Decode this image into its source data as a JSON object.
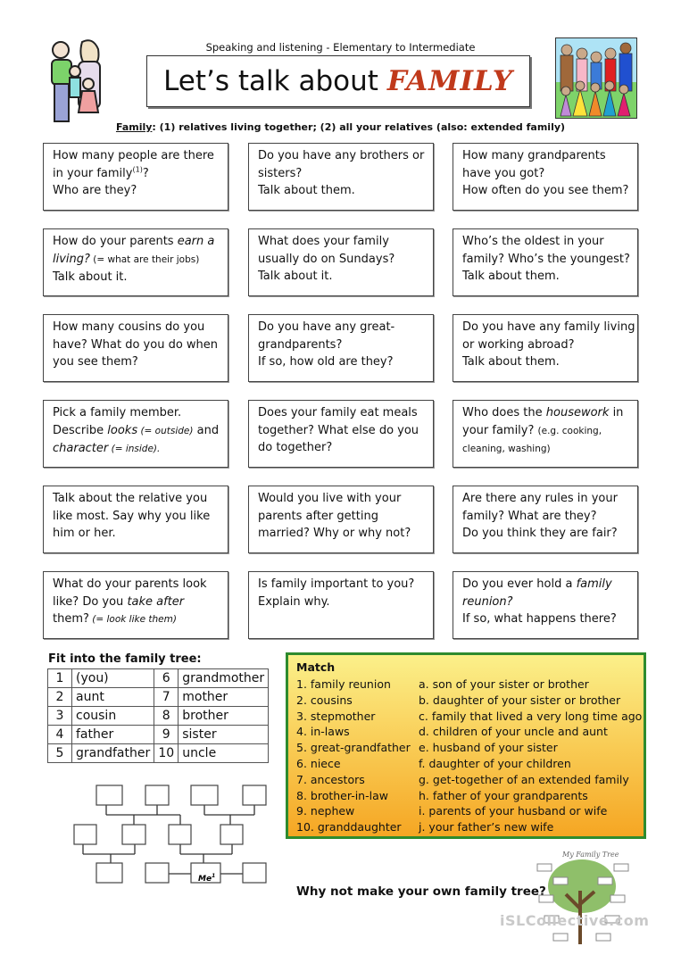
{
  "header": {
    "subtitle": "Speaking and listening - Elementary to Intermediate",
    "title_main": "Let’s talk about",
    "title_accent": "FAMILY",
    "definition_term": "Family",
    "definition_text": ": (1) relatives living together; (2) all your relatives (also: extended family)",
    "accent_color": "#c0391b"
  },
  "cards": [
    [
      [
        {
          "t": "How many people are there"
        }
      ],
      [
        {
          "t": "in your family"
        },
        {
          "t": "(1)",
          "sup": true
        },
        {
          "t": "?"
        }
      ],
      [
        {
          "t": "Who are they?"
        }
      ]
    ],
    [
      [
        {
          "t": "Do you have any brothers or"
        }
      ],
      [
        {
          "t": "sisters?"
        }
      ],
      [
        {
          "t": "Talk about them."
        }
      ]
    ],
    [
      [
        {
          "t": "How many grandparents"
        }
      ],
      [
        {
          "t": "have you got?"
        }
      ],
      [
        {
          "t": "How often do you see them?"
        }
      ]
    ],
    [
      [
        {
          "t": "How do your parents "
        },
        {
          "t": "earn a",
          "i": true
        }
      ],
      [
        {
          "t": "living?",
          "i": true
        },
        {
          "t": " (= what are their jobs)",
          "s": true
        }
      ],
      [
        {
          "t": "Talk about it."
        }
      ]
    ],
    [
      [
        {
          "t": "What does your family"
        }
      ],
      [
        {
          "t": "usually do on Sundays?"
        }
      ],
      [
        {
          "t": "Talk about it."
        }
      ]
    ],
    [
      [
        {
          "t": "Who’s the oldest in your"
        }
      ],
      [
        {
          "t": "family? Who’s the youngest?"
        }
      ],
      [
        {
          "t": "Talk about them."
        }
      ]
    ],
    [
      [
        {
          "t": "How many cousins do you"
        }
      ],
      [
        {
          "t": "have? What do you do when"
        }
      ],
      [
        {
          "t": "you see them?"
        }
      ]
    ],
    [
      [
        {
          "t": "Do you have any great-"
        }
      ],
      [
        {
          "t": "grandparents?"
        }
      ],
      [
        {
          "t": "If so, how old are they?"
        }
      ]
    ],
    [
      [
        {
          "t": "Do you have any family living"
        }
      ],
      [
        {
          "t": "or working abroad?"
        }
      ],
      [
        {
          "t": "Talk about them."
        }
      ]
    ],
    [
      [
        {
          "t": "Pick a family member."
        }
      ],
      [
        {
          "t": "Describe "
        },
        {
          "t": "looks",
          "i": true
        },
        {
          "t": " (= outside)",
          "s": true,
          "i": true
        },
        {
          "t": " and"
        }
      ],
      [
        {
          "t": "character",
          "i": true
        },
        {
          "t": " (= inside).",
          "s": true,
          "i": true
        }
      ]
    ],
    [
      [
        {
          "t": "Does your family eat meals"
        }
      ],
      [
        {
          "t": "together? What else do you"
        }
      ],
      [
        {
          "t": "do together?"
        }
      ]
    ],
    [
      [
        {
          "t": "Who does the "
        },
        {
          "t": "housework",
          "i": true
        },
        {
          "t": " in"
        }
      ],
      [
        {
          "t": "your family? "
        },
        {
          "t": "(e.g. cooking,",
          "s": true
        }
      ],
      [
        {
          "t": "cleaning, washing)",
          "s": true
        }
      ]
    ],
    [
      [
        {
          "t": "Talk about the relative you"
        }
      ],
      [
        {
          "t": "like most. Say why you like"
        }
      ],
      [
        {
          "t": "him or her."
        }
      ]
    ],
    [
      [
        {
          "t": "Would you live with your"
        }
      ],
      [
        {
          "t": "parents after getting"
        }
      ],
      [
        {
          "t": "married? Why or why not?"
        }
      ]
    ],
    [
      [
        {
          "t": "Are there any rules in your"
        }
      ],
      [
        {
          "t": "family? What are they?"
        }
      ],
      [
        {
          "t": "Do you think they are fair?"
        }
      ]
    ],
    [
      [
        {
          "t": "What do your parents look"
        }
      ],
      [
        {
          "t": "like? Do you "
        },
        {
          "t": "take after",
          "i": true
        }
      ],
      [
        {
          "t": "them?"
        },
        {
          "t": " (= look like them)",
          "s": true,
          "i": true
        }
      ]
    ],
    [
      [
        {
          "t": "Is family important to you?"
        }
      ],
      [
        {
          "t": "Explain why."
        }
      ]
    ],
    [
      [
        {
          "t": "Do you ever hold a "
        },
        {
          "t": "family",
          "i": true
        }
      ],
      [
        {
          "t": "reunion?",
          "i": true
        }
      ],
      [
        {
          "t": "If so, what happens there?"
        }
      ]
    ]
  ],
  "fit": {
    "title": "Fit into the family tree:",
    "rows": [
      [
        "1",
        "(you)",
        "6",
        "grandmother"
      ],
      [
        "2",
        "aunt",
        "7",
        "mother"
      ],
      [
        "3",
        "cousin",
        "8",
        "brother"
      ],
      [
        "4",
        "father",
        "9",
        "sister"
      ],
      [
        "5",
        "grandfather",
        "10",
        "uncle"
      ]
    ],
    "me_label": "Me",
    "me_sup": "1"
  },
  "match": {
    "title": "Match",
    "left": [
      "1. family reunion",
      "2. cousins",
      "3. stepmother",
      "4. in-laws",
      "5. great-grandfather",
      "6. niece",
      "7. ancestors",
      "8. brother-in-law",
      "9. nephew",
      "10. granddaughter"
    ],
    "right": [
      "a. son of your sister or brother",
      "b. daughter of your sister or brother",
      "c. family that lived a very long time ago",
      "d. children of your uncle and aunt",
      "e. husband of your sister",
      "f. daughter of your children",
      "g. get-together of an extended family",
      "h. father of your grandparents",
      "i. parents of your husband or wife",
      "j. your father’s new wife"
    ],
    "border_color": "#2e8b2e"
  },
  "footer": {
    "prompt": "Why not make your own family tree?",
    "image_caption": "My Family Tree",
    "watermark": "iSLCollective.com"
  }
}
